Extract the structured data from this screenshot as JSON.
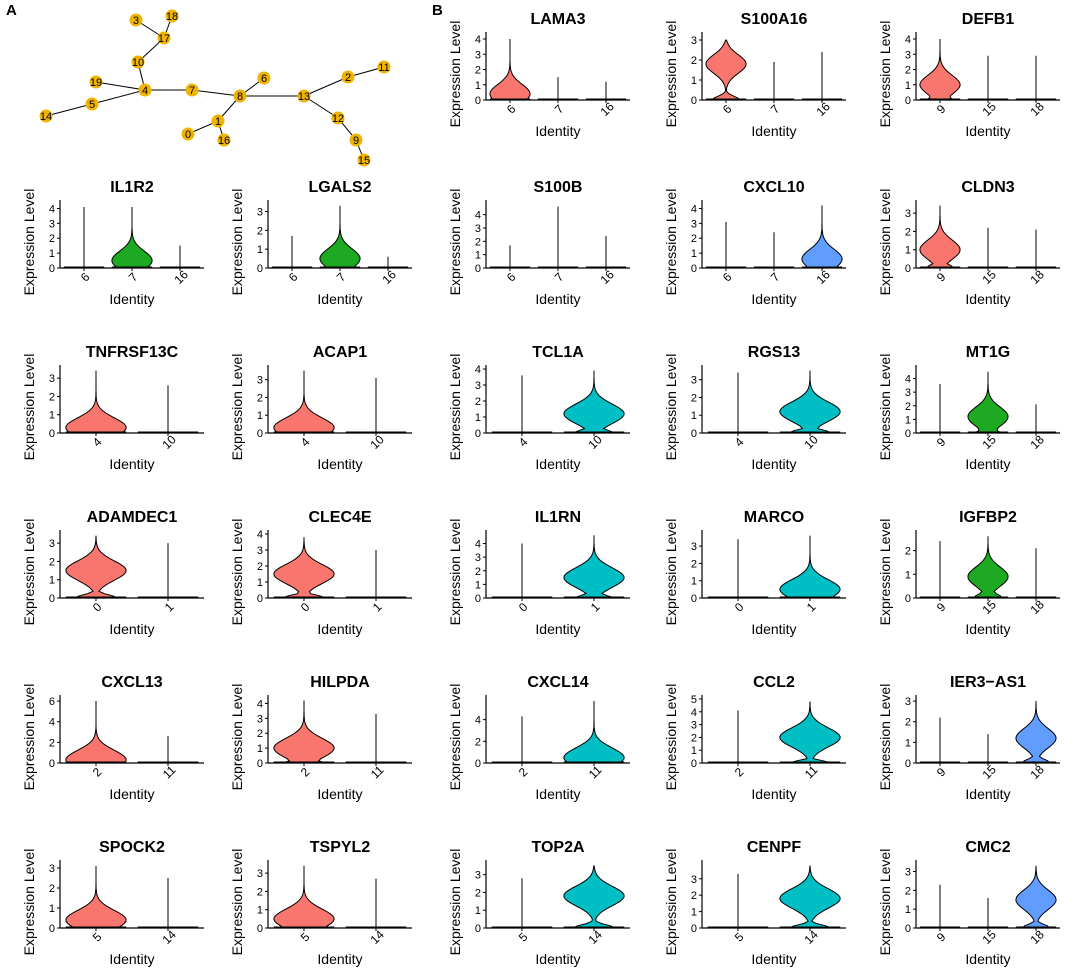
{
  "figure": {
    "panel_labels": [
      "A",
      "B"
    ],
    "colors": {
      "salmon": "#F8766D",
      "green": "#1DAA22",
      "cyan": "#00BFC4",
      "blue": "#619CFF",
      "node": "#F0B400",
      "axis": "#000000"
    }
  },
  "tree": {
    "nodes": [
      "0",
      "1",
      "2",
      "4",
      "5",
      "6",
      "7",
      "8",
      "9",
      "10",
      "11",
      "12",
      "13",
      "14",
      "15",
      "16",
      "17",
      "18",
      "19",
      "3"
    ],
    "edges": [
      [
        "3",
        "17"
      ],
      [
        "18",
        "17"
      ],
      [
        "17",
        "10"
      ],
      [
        "10",
        "4"
      ],
      [
        "19",
        "4"
      ],
      [
        "4",
        "5"
      ],
      [
        "5",
        "14"
      ],
      [
        "4",
        "7"
      ],
      [
        "7",
        "8"
      ],
      [
        "6",
        "8"
      ],
      [
        "8",
        "1"
      ],
      [
        "1",
        "0"
      ],
      [
        "1",
        "16"
      ],
      [
        "8",
        "13"
      ],
      [
        "13",
        "2"
      ],
      [
        "2",
        "11"
      ],
      [
        "13",
        "12"
      ],
      [
        "12",
        "9"
      ],
      [
        "9",
        "15"
      ]
    ]
  },
  "chart_data": [
    {
      "type": "violin",
      "title": "LAMA3",
      "xlabel": "Identity",
      "ylabel": "Expression Level",
      "categories": [
        "6",
        "7",
        "16"
      ],
      "series": [
        {
          "name": "6",
          "color": "#F8766D",
          "max": 4.0,
          "median": 0.4
        },
        {
          "name": "7",
          "color": "#F8766D",
          "max": 1.5,
          "median": 0
        },
        {
          "name": "16",
          "color": "#F8766D",
          "max": 1.2,
          "median": 0
        }
      ],
      "yticks": [
        0,
        1,
        2,
        3,
        4
      ],
      "ylim": [
        0,
        4.2
      ]
    },
    {
      "type": "violin",
      "title": "S100A16",
      "xlabel": "Identity",
      "ylabel": "Expression Level",
      "categories": [
        "6",
        "7",
        "16"
      ],
      "series": [
        {
          "name": "6",
          "color": "#F8766D",
          "max": 3.0,
          "median": 1.8
        },
        {
          "name": "7",
          "color": "#F8766D",
          "max": 1.9,
          "median": 0
        },
        {
          "name": "16",
          "color": "#F8766D",
          "max": 2.4,
          "median": 0
        }
      ],
      "yticks": [
        0,
        1,
        2,
        3
      ],
      "ylim": [
        0,
        3.2
      ]
    },
    {
      "type": "violin",
      "title": "DEFB1",
      "xlabel": "Identity",
      "ylabel": "Expression Level",
      "categories": [
        "9",
        "15",
        "18"
      ],
      "series": [
        {
          "name": "9",
          "color": "#F8766D",
          "max": 4.0,
          "median": 1.0
        },
        {
          "name": "15",
          "color": "#F8766D",
          "max": 2.9,
          "median": 0
        },
        {
          "name": "18",
          "color": "#F8766D",
          "max": 2.9,
          "median": 0
        }
      ],
      "yticks": [
        0,
        1,
        2,
        3,
        4
      ],
      "ylim": [
        0,
        4.2
      ]
    },
    {
      "type": "violin",
      "title": "IL1R2",
      "xlabel": "Identity",
      "ylabel": "Expression Level",
      "categories": [
        "6",
        "7",
        "16"
      ],
      "series": [
        {
          "name": "6",
          "color": "#1DAA22",
          "max": 4.1,
          "median": 0
        },
        {
          "name": "7",
          "color": "#1DAA22",
          "max": 4.1,
          "median": 0.5
        },
        {
          "name": "16",
          "color": "#1DAA22",
          "max": 1.5,
          "median": 0
        }
      ],
      "yticks": [
        0,
        1,
        2,
        3,
        4
      ],
      "ylim": [
        0,
        4.3
      ]
    },
    {
      "type": "violin",
      "title": "LGALS2",
      "xlabel": "Identity",
      "ylabel": "Expression Level",
      "categories": [
        "6",
        "7",
        "16"
      ],
      "series": [
        {
          "name": "6",
          "color": "#1DAA22",
          "max": 1.7,
          "median": 0
        },
        {
          "name": "7",
          "color": "#1DAA22",
          "max": 3.3,
          "median": 0.5
        },
        {
          "name": "16",
          "color": "#1DAA22",
          "max": 0.6,
          "median": 0
        }
      ],
      "yticks": [
        0,
        1,
        2,
        3
      ],
      "ylim": [
        0,
        3.4
      ]
    },
    {
      "type": "violin",
      "title": "S100B",
      "xlabel": "Identity",
      "ylabel": "Expression Level",
      "categories": [
        "6",
        "7",
        "16"
      ],
      "series": [
        {
          "name": "6",
          "color": "#619CFF",
          "max": 1.7,
          "median": 0
        },
        {
          "name": "7",
          "color": "#619CFF",
          "max": 4.6,
          "median": 0
        },
        {
          "name": "16",
          "color": "#619CFF",
          "max": 2.4,
          "median": 0
        }
      ],
      "yticks": [
        0,
        1,
        2,
        3,
        4
      ],
      "ylim": [
        0,
        4.8
      ]
    },
    {
      "type": "violin",
      "title": "CXCL10",
      "xlabel": "Identity",
      "ylabel": "Expression Level",
      "categories": [
        "6",
        "7",
        "16"
      ],
      "series": [
        {
          "name": "6",
          "color": "#619CFF",
          "max": 3.1,
          "median": 0
        },
        {
          "name": "7",
          "color": "#619CFF",
          "max": 2.4,
          "median": 0
        },
        {
          "name": "16",
          "color": "#619CFF",
          "max": 4.2,
          "median": 0.6
        }
      ],
      "yticks": [
        0,
        1,
        2,
        3,
        4
      ],
      "ylim": [
        0,
        4.3
      ]
    },
    {
      "type": "violin",
      "title": "CLDN3",
      "xlabel": "Identity",
      "ylabel": "Expression Level",
      "categories": [
        "9",
        "15",
        "18"
      ],
      "series": [
        {
          "name": "9",
          "color": "#F8766D",
          "max": 3.4,
          "median": 1.0
        },
        {
          "name": "15",
          "color": "#F8766D",
          "max": 2.2,
          "median": 0
        },
        {
          "name": "18",
          "color": "#F8766D",
          "max": 2.1,
          "median": 0
        }
      ],
      "yticks": [
        0,
        1,
        2,
        3
      ],
      "ylim": [
        0,
        3.5
      ]
    },
    {
      "type": "violin",
      "title": "TNFRSF13C",
      "xlabel": "Identity",
      "ylabel": "Expression Level",
      "categories": [
        "4",
        "10"
      ],
      "series": [
        {
          "name": "4",
          "color": "#F8766D",
          "max": 3.4,
          "median": 0.3
        },
        {
          "name": "10",
          "color": "#F8766D",
          "max": 2.6,
          "median": 0
        }
      ],
      "yticks": [
        0,
        1,
        2,
        3
      ],
      "ylim": [
        0,
        3.5
      ]
    },
    {
      "type": "violin",
      "title": "ACAP1",
      "xlabel": "Identity",
      "ylabel": "Expression Level",
      "categories": [
        "4",
        "10"
      ],
      "series": [
        {
          "name": "4",
          "color": "#F8766D",
          "max": 3.5,
          "median": 0.3
        },
        {
          "name": "10",
          "color": "#F8766D",
          "max": 3.1,
          "median": 0
        }
      ],
      "yticks": [
        0,
        1,
        2,
        3
      ],
      "ylim": [
        0,
        3.6
      ]
    },
    {
      "type": "violin",
      "title": "TCL1A",
      "xlabel": "Identity",
      "ylabel": "Expression Level",
      "categories": [
        "4",
        "10"
      ],
      "series": [
        {
          "name": "4",
          "color": "#00BFC4",
          "max": 3.6,
          "median": 0
        },
        {
          "name": "10",
          "color": "#00BFC4",
          "max": 3.9,
          "median": 1.2
        }
      ],
      "yticks": [
        0,
        1,
        2,
        3,
        4
      ],
      "ylim": [
        0,
        4.0
      ]
    },
    {
      "type": "violin",
      "title": "RGS13",
      "xlabel": "Identity",
      "ylabel": "Expression Level",
      "categories": [
        "4",
        "10"
      ],
      "series": [
        {
          "name": "4",
          "color": "#00BFC4",
          "max": 3.4,
          "median": 0
        },
        {
          "name": "10",
          "color": "#00BFC4",
          "max": 3.5,
          "median": 1.2
        }
      ],
      "yticks": [
        0,
        1,
        2,
        3
      ],
      "ylim": [
        0,
        3.6
      ]
    },
    {
      "type": "violin",
      "title": "MT1G",
      "xlabel": "Identity",
      "ylabel": "Expression Level",
      "categories": [
        "9",
        "15",
        "18"
      ],
      "series": [
        {
          "name": "9",
          "color": "#1DAA22",
          "max": 3.6,
          "median": 0
        },
        {
          "name": "15",
          "color": "#1DAA22",
          "max": 4.5,
          "median": 1.2
        },
        {
          "name": "18",
          "color": "#1DAA22",
          "max": 2.1,
          "median": 0
        }
      ],
      "yticks": [
        0,
        1,
        2,
        3,
        4
      ],
      "ylim": [
        0,
        4.7
      ]
    },
    {
      "type": "violin",
      "title": "ADAMDEC1",
      "xlabel": "Identity",
      "ylabel": "Expression Level",
      "categories": [
        "0",
        "1"
      ],
      "series": [
        {
          "name": "0",
          "color": "#F8766D",
          "max": 3.4,
          "median": 1.5
        },
        {
          "name": "1",
          "color": "#F8766D",
          "max": 3.0,
          "median": 0
        }
      ],
      "yticks": [
        0,
        1,
        2,
        3
      ],
      "ylim": [
        0,
        3.5
      ]
    },
    {
      "type": "violin",
      "title": "CLEC4E",
      "xlabel": "Identity",
      "ylabel": "Expression Level",
      "categories": [
        "0",
        "1"
      ],
      "series": [
        {
          "name": "0",
          "color": "#F8766D",
          "max": 3.8,
          "median": 1.5
        },
        {
          "name": "1",
          "color": "#F8766D",
          "max": 3.0,
          "median": 0
        }
      ],
      "yticks": [
        0,
        1,
        2,
        3,
        4
      ],
      "ylim": [
        0,
        4.0
      ]
    },
    {
      "type": "violin",
      "title": "IL1RN",
      "xlabel": "Identity",
      "ylabel": "Expression Level",
      "categories": [
        "0",
        "1"
      ],
      "series": [
        {
          "name": "0",
          "color": "#00BFC4",
          "max": 4.0,
          "median": 0
        },
        {
          "name": "1",
          "color": "#00BFC4",
          "max": 4.6,
          "median": 1.5
        }
      ],
      "yticks": [
        0,
        1,
        2,
        3,
        4
      ],
      "ylim": [
        0,
        4.7
      ]
    },
    {
      "type": "violin",
      "title": "MARCO",
      "xlabel": "Identity",
      "ylabel": "Expression Level",
      "categories": [
        "0",
        "1"
      ],
      "series": [
        {
          "name": "0",
          "color": "#00BFC4",
          "max": 3.4,
          "median": 0
        },
        {
          "name": "1",
          "color": "#00BFC4",
          "max": 3.6,
          "median": 0.5
        }
      ],
      "yticks": [
        0,
        1,
        2,
        3
      ],
      "ylim": [
        0,
        3.7
      ]
    },
    {
      "type": "violin",
      "title": "IGFBP2",
      "xlabel": "Identity",
      "ylabel": "Expression Level",
      "categories": [
        "9",
        "15",
        "18"
      ],
      "series": [
        {
          "name": "9",
          "color": "#1DAA22",
          "max": 2.4,
          "median": 0
        },
        {
          "name": "15",
          "color": "#1DAA22",
          "max": 2.6,
          "median": 0.9
        },
        {
          "name": "18",
          "color": "#1DAA22",
          "max": 2.1,
          "median": 0
        }
      ],
      "yticks": [
        0,
        1,
        2
      ],
      "ylim": [
        0,
        2.7
      ]
    },
    {
      "type": "violin",
      "title": "CXCL13",
      "xlabel": "Identity",
      "ylabel": "Expression Level",
      "categories": [
        "2",
        "11"
      ],
      "series": [
        {
          "name": "2",
          "color": "#F8766D",
          "max": 6.0,
          "median": 0.3
        },
        {
          "name": "11",
          "color": "#F8766D",
          "max": 2.6,
          "median": 0
        }
      ],
      "yticks": [
        0,
        2,
        4,
        6
      ],
      "ylim": [
        0,
        6.2
      ]
    },
    {
      "type": "violin",
      "title": "HILPDA",
      "xlabel": "Identity",
      "ylabel": "Expression Level",
      "categories": [
        "2",
        "11"
      ],
      "series": [
        {
          "name": "2",
          "color": "#F8766D",
          "max": 4.2,
          "median": 1.0
        },
        {
          "name": "11",
          "color": "#F8766D",
          "max": 3.3,
          "median": 0
        }
      ],
      "yticks": [
        0,
        1,
        2,
        3,
        4
      ],
      "ylim": [
        0,
        4.3
      ]
    },
    {
      "type": "violin",
      "title": "CXCL14",
      "xlabel": "Identity",
      "ylabel": "Expression Level",
      "categories": [
        "2",
        "11"
      ],
      "series": [
        {
          "name": "2",
          "color": "#00BFC4",
          "max": 4.3,
          "median": 0
        },
        {
          "name": "11",
          "color": "#00BFC4",
          "max": 5.7,
          "median": 0.5
        }
      ],
      "yticks": [
        0,
        2,
        4
      ],
      "ylim": [
        0,
        5.9
      ]
    },
    {
      "type": "violin",
      "title": "CCL2",
      "xlabel": "Identity",
      "ylabel": "Expression Level",
      "categories": [
        "2",
        "11"
      ],
      "series": [
        {
          "name": "2",
          "color": "#00BFC4",
          "max": 4.1,
          "median": 0
        },
        {
          "name": "11",
          "color": "#00BFC4",
          "max": 4.8,
          "median": 2.0
        }
      ],
      "yticks": [
        0,
        1,
        2,
        3,
        4,
        5
      ],
      "ylim": [
        0,
        5.0
      ]
    },
    {
      "type": "violin",
      "title": "IER3−AS1",
      "xlabel": "Identity",
      "ylabel": "Expression Level",
      "categories": [
        "9",
        "15",
        "18"
      ],
      "series": [
        {
          "name": "9",
          "color": "#619CFF",
          "max": 2.2,
          "median": 0
        },
        {
          "name": "15",
          "color": "#619CFF",
          "max": 1.4,
          "median": 0
        },
        {
          "name": "18",
          "color": "#619CFF",
          "max": 3.0,
          "median": 1.2
        }
      ],
      "yticks": [
        0,
        1,
        2,
        3
      ],
      "ylim": [
        0,
        3.1
      ]
    },
    {
      "type": "violin",
      "title": "SPOCK2",
      "xlabel": "Identity",
      "ylabel": "Expression Level",
      "categories": [
        "5",
        "14"
      ],
      "series": [
        {
          "name": "5",
          "color": "#F8766D",
          "max": 3.1,
          "median": 0.4
        },
        {
          "name": "14",
          "color": "#F8766D",
          "max": 2.5,
          "median": 0
        }
      ],
      "yticks": [
        0,
        1,
        2,
        3
      ],
      "ylim": [
        0,
        3.2
      ]
    },
    {
      "type": "violin",
      "title": "TSPYL2",
      "xlabel": "Identity",
      "ylabel": "Expression Level",
      "categories": [
        "5",
        "14"
      ],
      "series": [
        {
          "name": "5",
          "color": "#F8766D",
          "max": 3.4,
          "median": 0.5
        },
        {
          "name": "14",
          "color": "#F8766D",
          "max": 2.7,
          "median": 0
        }
      ],
      "yticks": [
        0,
        1,
        2,
        3
      ],
      "ylim": [
        0,
        3.5
      ]
    },
    {
      "type": "violin",
      "title": "TOP2A",
      "xlabel": "Identity",
      "ylabel": "Expression Level",
      "categories": [
        "5",
        "14"
      ],
      "series": [
        {
          "name": "5",
          "color": "#00BFC4",
          "max": 2.8,
          "median": 0
        },
        {
          "name": "14",
          "color": "#00BFC4",
          "max": 3.5,
          "median": 1.8
        }
      ],
      "yticks": [
        0,
        1,
        2,
        3
      ],
      "ylim": [
        0,
        3.6
      ]
    },
    {
      "type": "violin",
      "title": "CENPF",
      "xlabel": "Identity",
      "ylabel": "Expression Level",
      "categories": [
        "5",
        "14"
      ],
      "series": [
        {
          "name": "5",
          "color": "#00BFC4",
          "max": 3.3,
          "median": 0
        },
        {
          "name": "14",
          "color": "#00BFC4",
          "max": 3.8,
          "median": 1.8
        }
      ],
      "yticks": [
        0,
        1,
        2,
        3
      ],
      "ylim": [
        0,
        3.9
      ]
    },
    {
      "type": "violin",
      "title": "CMC2",
      "xlabel": "Identity",
      "ylabel": "Expression Level",
      "categories": [
        "9",
        "15",
        "18"
      ],
      "series": [
        {
          "name": "9",
          "color": "#619CFF",
          "max": 2.3,
          "median": 0
        },
        {
          "name": "15",
          "color": "#619CFF",
          "max": 1.6,
          "median": 0
        },
        {
          "name": "18",
          "color": "#619CFF",
          "max": 3.3,
          "median": 1.5
        }
      ],
      "yticks": [
        0,
        1,
        2,
        3
      ],
      "ylim": [
        0,
        3.4
      ]
    }
  ]
}
